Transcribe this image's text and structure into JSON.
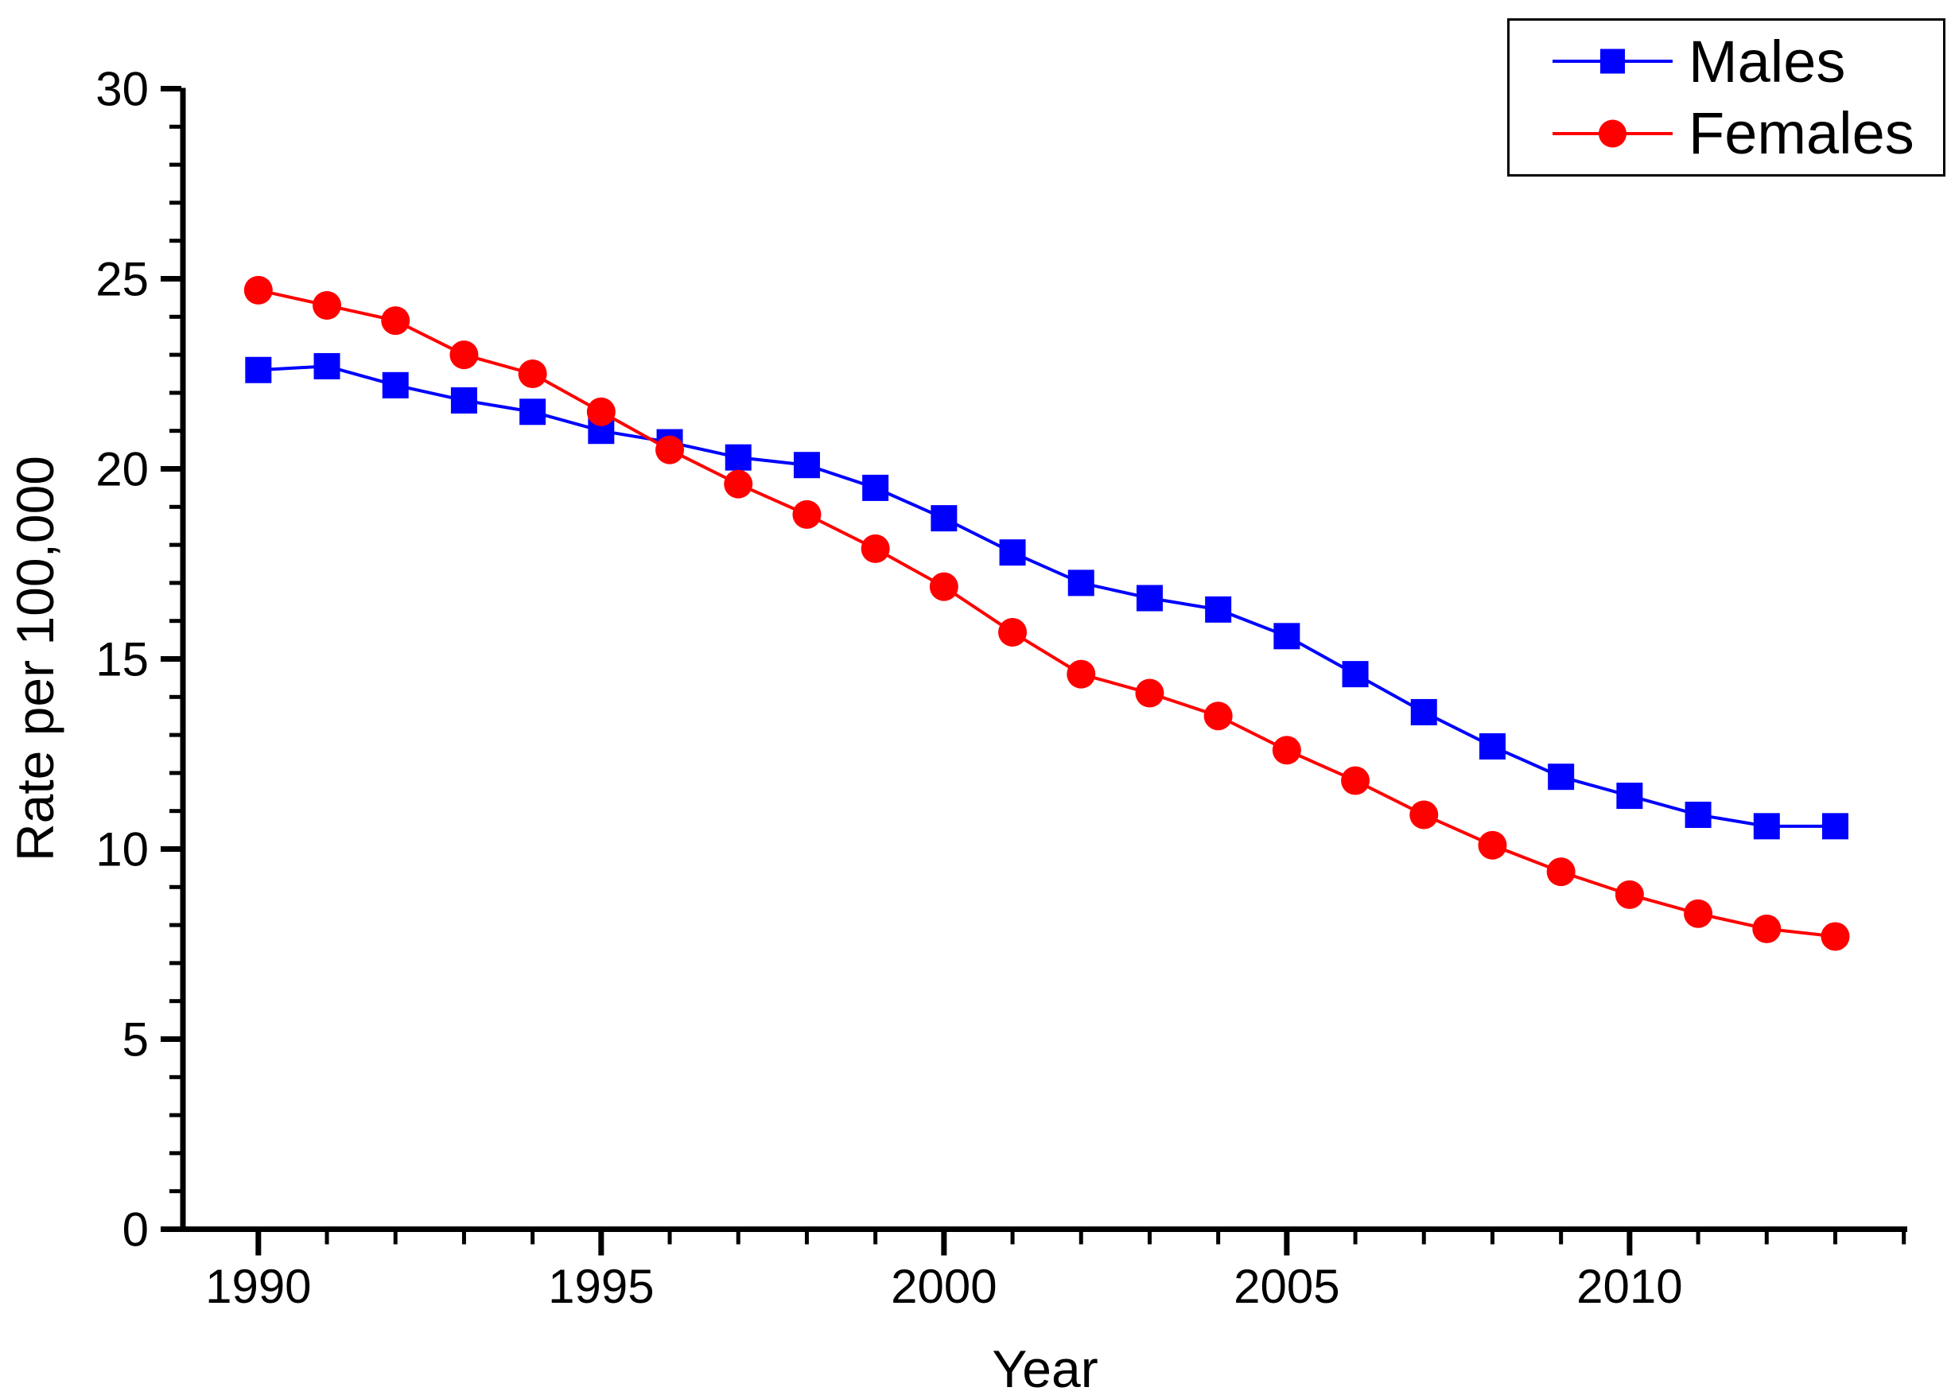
{
  "chart_data": {
    "type": "line",
    "title": "",
    "xlabel": "Year",
    "ylabel": "Rate per 100,000",
    "x": [
      1990,
      1991,
      1992,
      1993,
      1994,
      1995,
      1996,
      1997,
      1998,
      1999,
      2000,
      2001,
      2002,
      2003,
      2004,
      2005,
      2006,
      2007,
      2008,
      2009,
      2010,
      2011,
      2012,
      2013
    ],
    "series": [
      {
        "name": "Males",
        "marker": "square",
        "color": "#0000ff",
        "values": [
          22.6,
          22.7,
          22.2,
          21.8,
          21.5,
          21.0,
          20.7,
          20.3,
          20.1,
          19.5,
          18.7,
          17.8,
          17.0,
          16.6,
          16.3,
          15.6,
          14.6,
          13.6,
          12.7,
          11.9,
          11.4,
          10.9,
          10.6,
          10.6
        ]
      },
      {
        "name": "Females",
        "marker": "circle",
        "color": "#ff0000",
        "values": [
          24.7,
          24.3,
          23.9,
          23.0,
          22.5,
          21.5,
          20.5,
          19.6,
          18.8,
          17.9,
          16.9,
          15.7,
          14.6,
          14.1,
          13.5,
          12.6,
          11.8,
          10.9,
          10.1,
          9.4,
          8.8,
          8.3,
          7.9,
          7.7
        ]
      }
    ],
    "xlim": [
      1988.9,
      2014.05
    ],
    "ylim": [
      0,
      30
    ],
    "x_major_ticks": [
      1990,
      1995,
      2000,
      2005,
      2010
    ],
    "y_major_ticks": [
      0,
      5,
      10,
      15,
      20,
      25,
      30
    ],
    "x_minor_tick_step": 1,
    "y_minor_tick_step": 1,
    "last_minor_tick_year": 2014,
    "grid": false,
    "legend_position": "top-right",
    "axis_color": "#000000",
    "background": "#ffffff"
  }
}
